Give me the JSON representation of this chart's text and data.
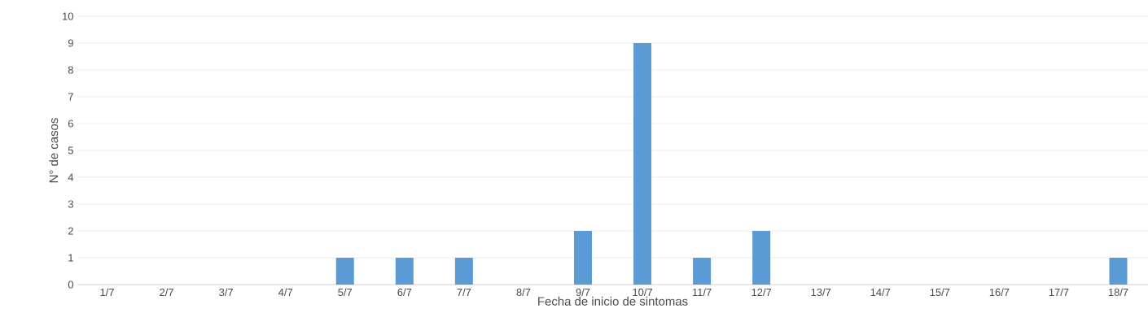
{
  "chart_data": {
    "type": "bar",
    "xlabel": "Fecha de inicio de sintomas",
    "ylabel": "N° de casos",
    "categories": [
      "1/7",
      "2/7",
      "3/7",
      "4/7",
      "5/7",
      "6/7",
      "7/7",
      "8/7",
      "9/7",
      "10/7",
      "11/7",
      "12/7",
      "13/7",
      "14/7",
      "15/7",
      "16/7",
      "17/7",
      "18/7"
    ],
    "values": [
      0,
      0,
      0,
      0,
      1,
      1,
      1,
      0,
      2,
      9,
      1,
      2,
      0,
      0,
      0,
      0,
      0,
      1
    ],
    "color": "#5b9bd5",
    "ylim": [
      0,
      10
    ],
    "yticks": [
      0,
      1,
      2,
      3,
      4,
      5,
      6,
      7,
      8,
      9,
      10
    ],
    "grid": "y",
    "legend": false
  }
}
